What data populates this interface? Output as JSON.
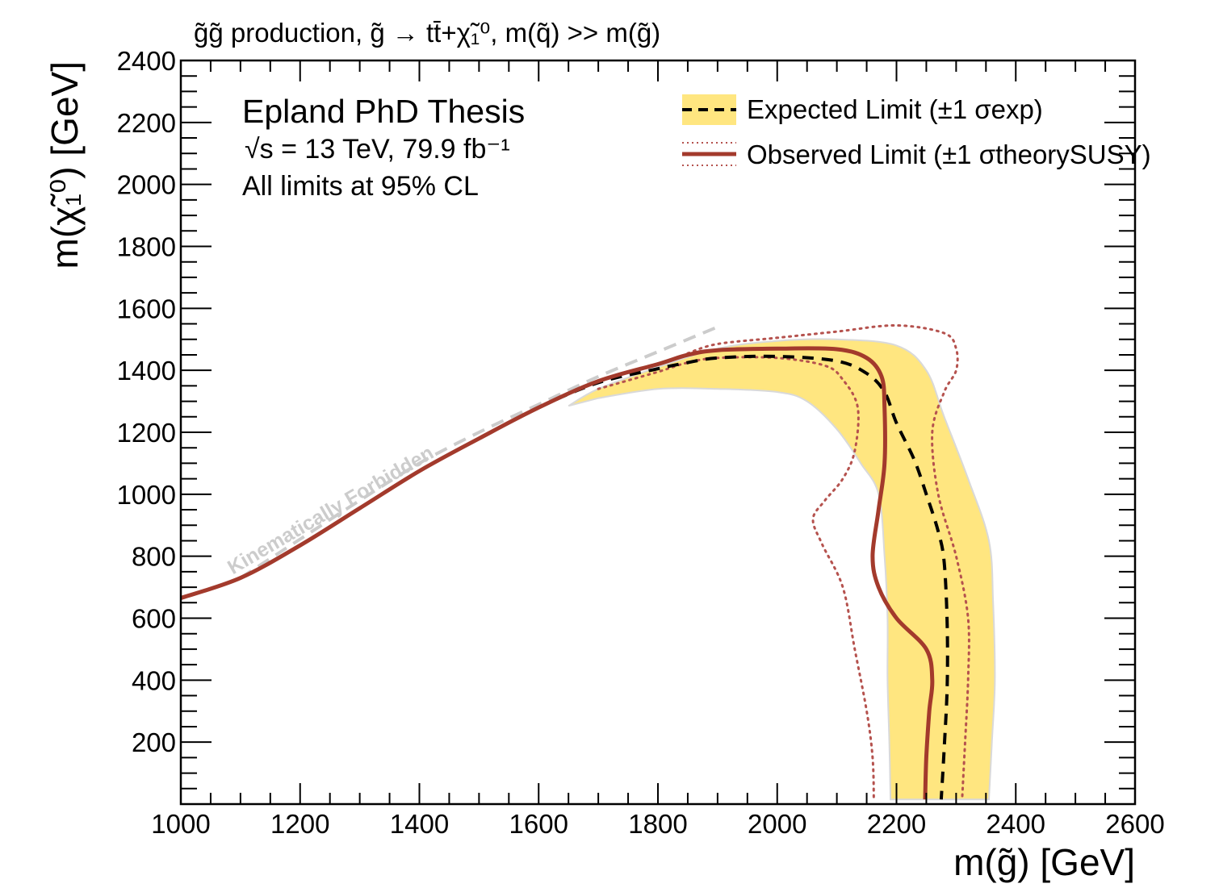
{
  "chart_data": {
    "type": "line",
    "title": "g̃g̃ production, g̃ → tt̄+χ̃₁⁰, m(q̃) >> m(g̃)",
    "xlabel": "m(g̃) [GeV]",
    "ylabel": "m(χ̃₁⁰) [GeV]",
    "xlim": [
      1000,
      2600
    ],
    "ylim": [
      0,
      2400
    ],
    "x_ticks": [
      1000,
      1200,
      1400,
      1600,
      1800,
      2000,
      2200,
      2400,
      2600
    ],
    "y_ticks": [
      200,
      400,
      600,
      800,
      1000,
      1200,
      1400,
      1600,
      1800,
      2000,
      2200,
      2400
    ],
    "x_tick_labels": [
      "1000",
      "1200",
      "1400",
      "1600",
      "1800",
      "2000",
      "2200",
      "2400",
      "2600"
    ],
    "y_tick_labels": [
      "200",
      "400",
      "600",
      "800",
      "1000",
      "1200",
      "1400",
      "1600",
      "1800",
      "2000",
      "2200",
      "2400"
    ],
    "annotations": {
      "experiment": "Epland PhD Thesis",
      "energy_lumi": "√s = 13 TeV, 79.9 fb⁻¹",
      "cl_note": "All limits at 95% CL",
      "forbidden_label": "Kinematically Forbidden"
    },
    "legend": {
      "placement": "top-right",
      "entries": [
        "Expected Limit (±1 σexp)",
        "Observed Limit (±1 σtheorySUSY)"
      ]
    },
    "colors": {
      "band_fill": "#ffe680",
      "band_edge": "#d9d9d9",
      "expected": "#000000",
      "observed": "#a33a2c",
      "observed_band": "#b5524e",
      "forbidden": "#cccccc"
    },
    "series": [
      {
        "name": "Expected Limit",
        "style": "dashed",
        "x": [
          1000,
          1100,
          1200,
          1300,
          1400,
          1500,
          1600,
          1700,
          1800,
          1850,
          1900,
          2000,
          2100,
          2150,
          2180,
          2200,
          2230,
          2250,
          2270,
          2280,
          2285,
          2285,
          2280,
          2275
        ],
        "y": [
          665,
          730,
          835,
          955,
          1075,
          1180,
          1280,
          1360,
          1405,
          1425,
          1440,
          1445,
          1430,
          1390,
          1330,
          1230,
          1110,
          1000,
          880,
          780,
          580,
          380,
          180,
          15
        ]
      },
      {
        "name": "Observed Limit",
        "style": "solid",
        "x": [
          1000,
          1100,
          1200,
          1300,
          1400,
          1500,
          1600,
          1700,
          1800,
          1850,
          1900,
          2000,
          2100,
          2150,
          2175,
          2180,
          2180,
          2170,
          2160,
          2170,
          2200,
          2250,
          2260,
          2255,
          2250,
          2248
        ],
        "y": [
          665,
          730,
          835,
          955,
          1075,
          1180,
          1280,
          1365,
          1420,
          1450,
          1465,
          1470,
          1468,
          1440,
          1380,
          1280,
          1100,
          950,
          800,
          700,
          600,
          500,
          400,
          300,
          150,
          15
        ]
      },
      {
        "name": "Observed Limit −1σ theory",
        "style": "dotted",
        "x": [
          1700,
          1800,
          1850,
          1900,
          2000,
          2080,
          2110,
          2135,
          2130,
          2110,
          2080,
          2060,
          2075,
          2110,
          2130,
          2150,
          2160,
          2162
        ],
        "y": [
          1340,
          1395,
          1425,
          1440,
          1440,
          1415,
          1370,
          1280,
          1140,
          1050,
          980,
          920,
          840,
          700,
          500,
          300,
          150,
          15
        ]
      },
      {
        "name": "Observed Limit +1σ theory",
        "style": "dotted",
        "x": [
          1850,
          1900,
          2000,
          2100,
          2200,
          2280,
          2300,
          2300,
          2280,
          2260,
          2270,
          2300,
          2320,
          2320,
          2315,
          2310
        ],
        "y": [
          1455,
          1485,
          1505,
          1525,
          1545,
          1520,
          1470,
          1400,
          1330,
          1200,
          1000,
          800,
          600,
          400,
          200,
          15
        ]
      },
      {
        "name": "Expected ±1σ band (lower edge)",
        "style": "band",
        "x": [
          1700,
          1800,
          1900,
          2000,
          2050,
          2100,
          2140,
          2170,
          2180,
          2185,
          2185,
          2188,
          2190
        ],
        "y": [
          1310,
          1340,
          1340,
          1330,
          1300,
          1210,
          1100,
          1000,
          800,
          600,
          400,
          200,
          15
        ]
      },
      {
        "name": "Expected ±1σ band (upper edge)",
        "style": "band",
        "x": [
          1650,
          1700,
          1800,
          1900,
          2000,
          2100,
          2200,
          2250,
          2280,
          2320,
          2355,
          2362,
          2365,
          2360,
          2355
        ],
        "y": [
          1285,
          1340,
          1410,
          1470,
          1495,
          1500,
          1480,
          1400,
          1250,
          1050,
          850,
          650,
          400,
          200,
          15
        ]
      },
      {
        "name": "Kinematically Forbidden boundary",
        "style": "dashed",
        "x": [
          1100,
          1200,
          1300,
          1400,
          1500,
          1600,
          1700,
          1800,
          1900
        ],
        "y": [
          730,
          855,
          980,
          1100,
          1200,
          1290,
          1380,
          1460,
          1540
        ]
      }
    ]
  }
}
